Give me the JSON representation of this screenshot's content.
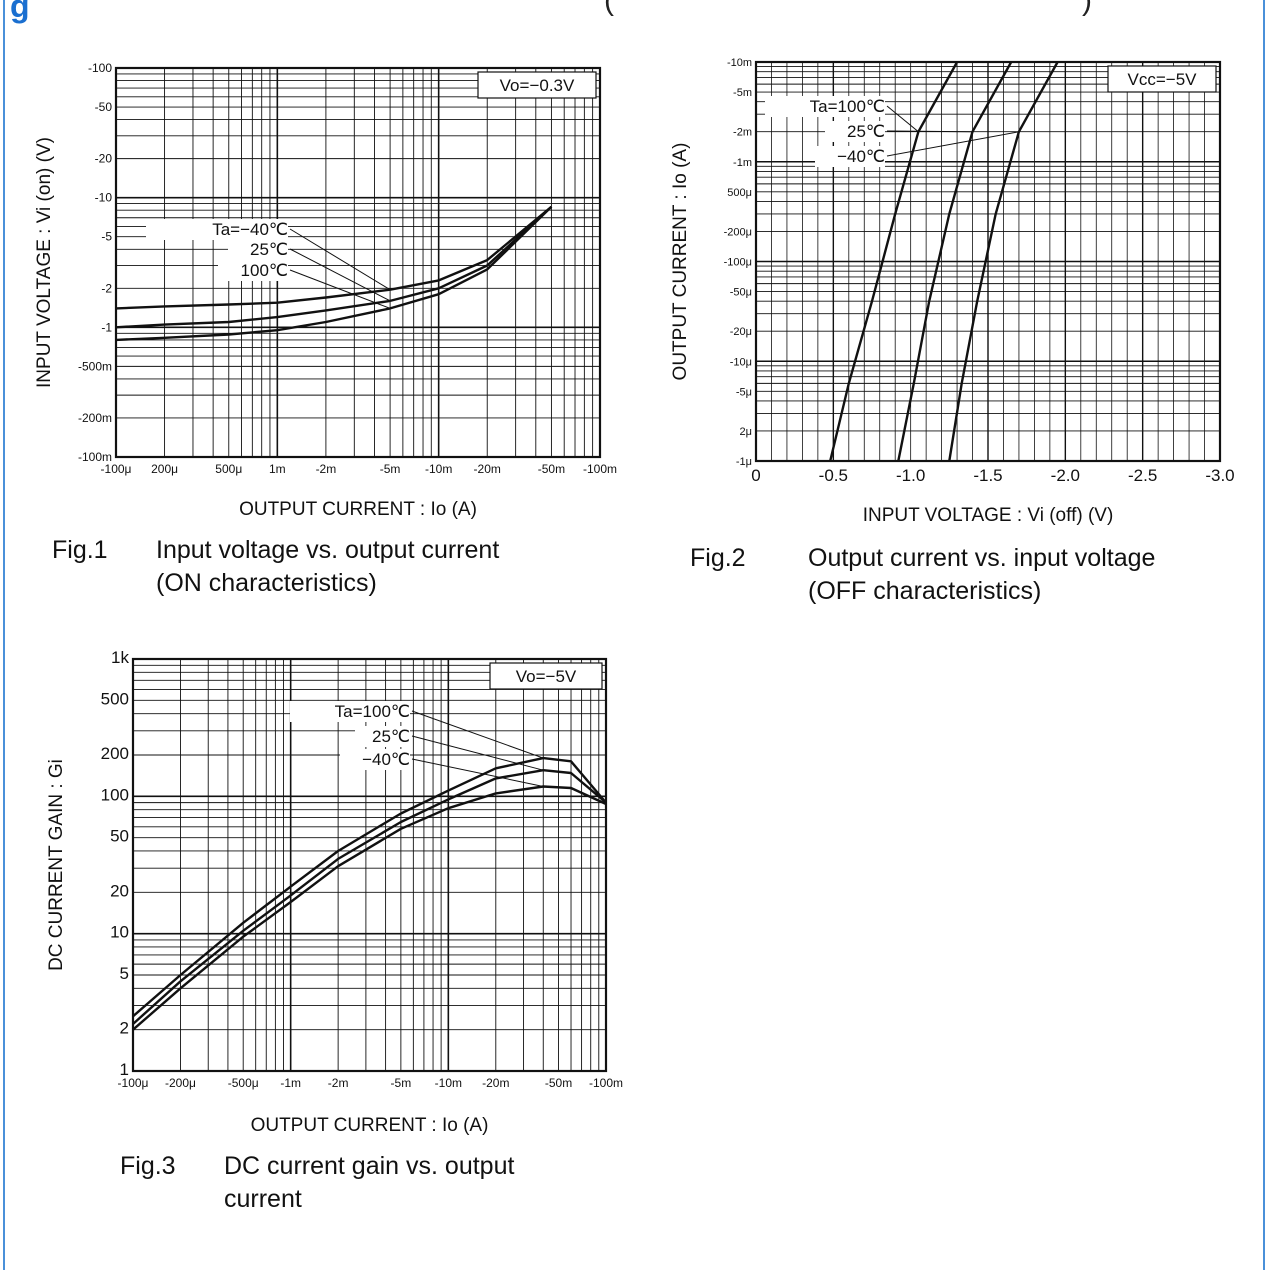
{
  "page": {
    "header_fragment_left": "g",
    "header_fragment_mid": "(",
    "header_fragment_right": ")"
  },
  "colors": {
    "border": "#4a90d9",
    "ink": "#111111",
    "header_blue": "#1a6fd0"
  },
  "chart_data": [
    {
      "type": "line",
      "figure_label": "Fig.1",
      "title_line1": "Input voltage vs. output current",
      "title_line2": "(ON characteristics)",
      "xlabel": "OUTPUT  CURRENT : Io  (A)",
      "ylabel": "INPUT  VOLTAGE : Vi (on)  (V)",
      "condition": "Vo=−0.3V",
      "xscale": "log",
      "yscale": "log",
      "xlim": [
        -0.0001,
        -0.1
      ],
      "ylim": [
        -0.1,
        -100
      ],
      "xtick_labels": [
        "-100μ",
        "200μ",
        "500μ",
        "1m",
        "-2m",
        "-5m",
        "-10m",
        "-20m",
        "-50m",
        "-100m"
      ],
      "xtick_values": [
        -0.0001,
        -0.0002,
        -0.0005,
        -0.001,
        -0.002,
        -0.005,
        -0.01,
        -0.02,
        -0.05,
        -0.1
      ],
      "ytick_labels": [
        "-100",
        "-50",
        "-20",
        "-10",
        "-5",
        "-2",
        "-1",
        "-500m",
        "-200m",
        "-100m"
      ],
      "ytick_values": [
        -100,
        -50,
        -20,
        -10,
        -5,
        -2,
        -1,
        -0.5,
        -0.2,
        -0.1
      ],
      "annotations": [
        "Ta=−40℃",
        "25℃",
        "100℃"
      ],
      "series": [
        {
          "name": "Ta=−40℃",
          "x": [
            -0.0001,
            -0.0002,
            -0.0005,
            -0.001,
            -0.002,
            -0.005,
            -0.01,
            -0.02,
            -0.05
          ],
          "y": [
            -1.4,
            -1.45,
            -1.5,
            -1.55,
            -1.7,
            -1.95,
            -2.3,
            -3.3,
            -8.5
          ]
        },
        {
          "name": "25℃",
          "x": [
            -0.0001,
            -0.0002,
            -0.0005,
            -0.001,
            -0.002,
            -0.005,
            -0.01,
            -0.02,
            -0.05
          ],
          "y": [
            -1.0,
            -1.05,
            -1.1,
            -1.2,
            -1.35,
            -1.6,
            -2.0,
            -3.0,
            -8.5
          ]
        },
        {
          "name": "100℃",
          "x": [
            -0.0001,
            -0.0002,
            -0.0005,
            -0.001,
            -0.002,
            -0.005,
            -0.01,
            -0.02,
            -0.05
          ],
          "y": [
            -0.8,
            -0.83,
            -0.88,
            -0.95,
            -1.1,
            -1.4,
            -1.8,
            -2.8,
            -8.5
          ]
        }
      ]
    },
    {
      "type": "line",
      "figure_label": "Fig.2",
      "title_line1": "Output current vs. input voltage",
      "title_line2": "(OFF characteristics)",
      "xlabel": "INPUT  VOLTAGE : Vi (off)  (V)",
      "ylabel": "OUTPUT  CURRENT : Io  (A)",
      "condition": "Vcc=−5V",
      "xscale": "linear",
      "yscale": "log",
      "xlim": [
        0,
        -3.0
      ],
      "ylim": [
        -1e-06,
        -0.01
      ],
      "xtick_labels": [
        "0",
        "-0.5",
        "-1.0",
        "-1.5",
        "-2.0",
        "-2.5",
        "-3.0"
      ],
      "xtick_values": [
        0,
        -0.5,
        -1.0,
        -1.5,
        -2.0,
        -2.5,
        -3.0
      ],
      "ytick_labels": [
        "-1μ",
        "2μ",
        "-5μ",
        "-10μ",
        "-20μ",
        "-50μ",
        "-100μ",
        "-200μ",
        "500μ",
        "-1m",
        "-2m",
        "-5m",
        "-10m"
      ],
      "ytick_values": [
        -1e-06,
        -2e-06,
        -5e-06,
        -1e-05,
        -2e-05,
        -5e-05,
        -0.0001,
        -0.0002,
        -0.0005,
        -0.001,
        -0.002,
        -0.005,
        -0.01
      ],
      "annotations": [
        "Ta=100℃",
        "25℃",
        "−40℃"
      ],
      "series": [
        {
          "name": "Ta=100℃",
          "x": [
            -0.48,
            -0.6,
            -0.75,
            -0.9,
            -1.05,
            -1.3
          ],
          "y": [
            -1e-06,
            -6e-06,
            -4e-05,
            -0.0003,
            -0.002,
            -0.01
          ]
        },
        {
          "name": "25℃",
          "x": [
            -0.92,
            -1.02,
            -1.12,
            -1.25,
            -1.4,
            -1.65
          ],
          "y": [
            -1e-06,
            -6e-06,
            -4e-05,
            -0.0003,
            -0.002,
            -0.01
          ]
        },
        {
          "name": "−40℃",
          "x": [
            -1.25,
            -1.33,
            -1.43,
            -1.55,
            -1.7,
            -1.95
          ],
          "y": [
            -1e-06,
            -6e-06,
            -4e-05,
            -0.0003,
            -0.002,
            -0.01
          ]
        }
      ]
    },
    {
      "type": "line",
      "figure_label": "Fig.3",
      "title_line1": "DC current gain vs. output",
      "title_line2": "current",
      "xlabel": "OUTPUT  CURRENT : Io  (A)",
      "ylabel": "DC  CURRENT  GAIN : Gi",
      "condition": "Vo=−5V",
      "xscale": "log",
      "yscale": "log",
      "xlim": [
        -0.0001,
        -0.1
      ],
      "ylim": [
        1,
        1000
      ],
      "xtick_labels": [
        "-100μ",
        "-200μ",
        "-500μ",
        "-1m",
        "-2m",
        "-5m",
        "-10m",
        "-20m",
        "-50m",
        "-100m"
      ],
      "xtick_values": [
        -0.0001,
        -0.0002,
        -0.0005,
        -0.001,
        -0.002,
        -0.005,
        -0.01,
        -0.02,
        -0.05,
        -0.1
      ],
      "ytick_labels": [
        "1",
        "2",
        "5",
        "10",
        "20",
        "50",
        "100",
        "200",
        "500",
        "1k"
      ],
      "ytick_values": [
        1,
        2,
        5,
        10,
        20,
        50,
        100,
        200,
        500,
        1000
      ],
      "annotations": [
        "Ta=100℃",
        "25℃",
        "−40℃"
      ],
      "series": [
        {
          "name": "Ta=100℃",
          "x": [
            -0.0001,
            -0.0002,
            -0.0005,
            -0.001,
            -0.002,
            -0.005,
            -0.01,
            -0.02,
            -0.04,
            -0.06,
            -0.1
          ],
          "y": [
            2.5,
            5,
            12,
            22,
            40,
            75,
            110,
            160,
            190,
            180,
            90
          ]
        },
        {
          "name": "25℃",
          "x": [
            -0.0001,
            -0.0002,
            -0.0005,
            -0.001,
            -0.002,
            -0.005,
            -0.01,
            -0.02,
            -0.04,
            -0.06,
            -0.1
          ],
          "y": [
            2.2,
            4.5,
            10.5,
            19,
            35,
            65,
            95,
            135,
            155,
            148,
            90
          ]
        },
        {
          "name": "−40℃",
          "x": [
            -0.0001,
            -0.0002,
            -0.0005,
            -0.001,
            -0.002,
            -0.005,
            -0.01,
            -0.02,
            -0.04,
            -0.06,
            -0.1
          ],
          "y": [
            2,
            4,
            9.5,
            17,
            31,
            58,
            82,
            105,
            118,
            115,
            88
          ]
        }
      ]
    }
  ]
}
